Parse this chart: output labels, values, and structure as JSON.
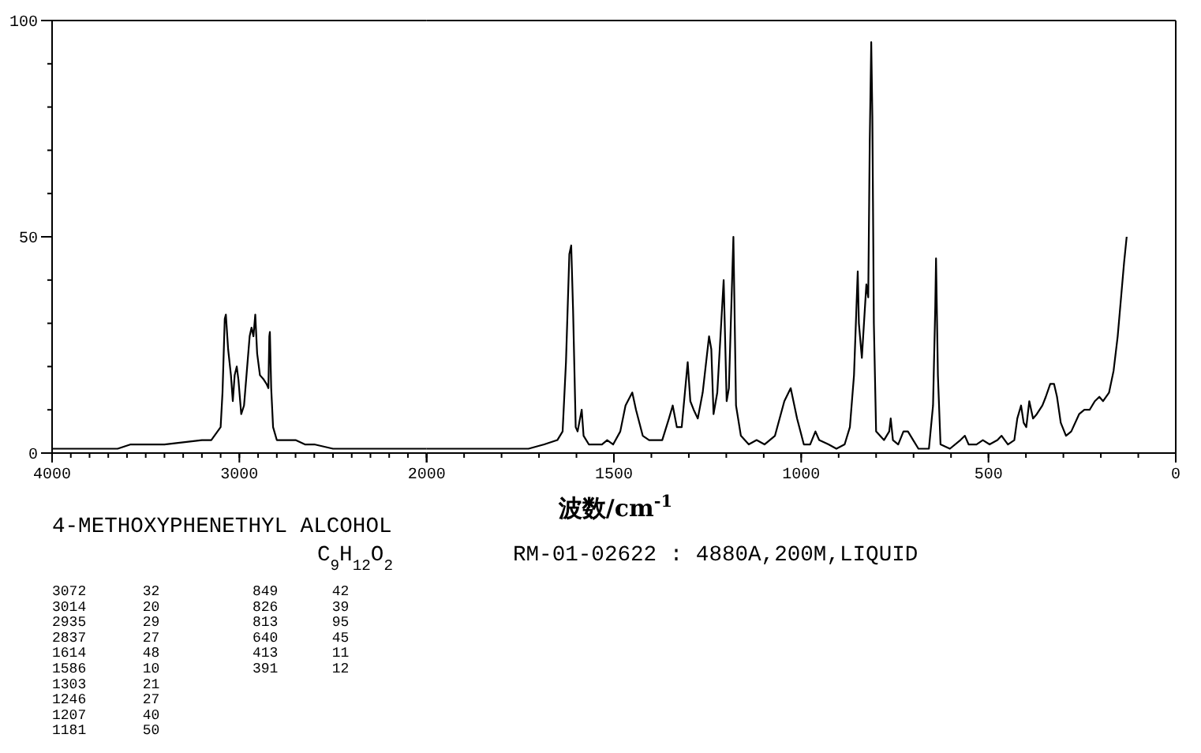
{
  "chart_data": [
    {
      "type": "line",
      "color": "#000000",
      "xlim": [
        4000,
        2000
      ],
      "ylim": [
        0,
        100
      ],
      "xticks": [
        4000,
        3000,
        2000
      ],
      "yticks": [
        0,
        50,
        100
      ],
      "x": [
        4000,
        3650,
        3580,
        3400,
        3200,
        3150,
        3100,
        3090,
        3078,
        3072,
        3060,
        3045,
        3035,
        3025,
        3014,
        3005,
        2990,
        2975,
        2960,
        2945,
        2935,
        2925,
        2915,
        2905,
        2890,
        2870,
        2855,
        2845,
        2840,
        2837,
        2830,
        2820,
        2800,
        2750,
        2700,
        2650,
        2600,
        2500,
        2300,
        2000
      ],
      "values": [
        1,
        1,
        2,
        2,
        3,
        3,
        6,
        14,
        31,
        32,
        24,
        18,
        12,
        18,
        20,
        17,
        9,
        11,
        19,
        27,
        29,
        27,
        32,
        23,
        18,
        17,
        16,
        15,
        27,
        28,
        15,
        6,
        3,
        3,
        3,
        2,
        2,
        1,
        1,
        1
      ],
      "annotations": [
        "4-METHOXYPHENETHYL ALCOHOL",
        "C$_{9}$H$_{12}$O$_{2}$",
        "RM-01-02622 : 4880A,200M,LIQUID",
        "3072 32",
        "3014 20",
        "2935 29",
        "2837 27",
        "1614 48",
        "1586 10",
        "1303 21",
        "1246 27",
        "1207 40",
        "1181 50",
        "849 42",
        "826 39",
        "813 95",
        "640 45",
        "413 11",
        "391 12"
      ]
    },
    {
      "type": "line",
      "color": "#000000",
      "xlabel": "波数/cm$^{-1}$",
      "xlim": [
        2000,
        0
      ],
      "ylim": [
        0,
        100
      ],
      "xticks": [
        {
          "value": 2000,
          "label": null
        },
        1500,
        1000,
        500,
        0
      ],
      "tick_labels": "x",
      "x": [
        2000,
        1728,
        1686,
        1651,
        1637,
        1628,
        1619,
        1614,
        1609,
        1602,
        1597,
        1586,
        1581,
        1567,
        1532,
        1518,
        1502,
        1483,
        1469,
        1451,
        1441,
        1423,
        1406,
        1371,
        1353,
        1343,
        1332,
        1319,
        1303,
        1296,
        1287,
        1276,
        1263,
        1246,
        1240,
        1234,
        1224,
        1207,
        1199,
        1193,
        1181,
        1174,
        1161,
        1140,
        1119,
        1098,
        1070,
        1045,
        1028,
        1011,
        993,
        976,
        962,
        952,
        927,
        906,
        884,
        870,
        859,
        849,
        846,
        838,
        831,
        826,
        821,
        817,
        813,
        810,
        806,
        800,
        779,
        765,
        761,
        755,
        741,
        727,
        715,
        701,
        687,
        659,
        648,
        642,
        640,
        635,
        628,
        603,
        575,
        563,
        553,
        532,
        515,
        497,
        476,
        465,
        448,
        431,
        423,
        413,
        406,
        399,
        391,
        381,
        371,
        356,
        347,
        335,
        325,
        317,
        307,
        293,
        279,
        258,
        244,
        230,
        216,
        204,
        194,
        178,
        166,
        155,
        145,
        138,
        131
      ],
      "values": [
        1,
        1,
        2,
        3,
        5,
        21,
        46,
        48,
        33,
        6,
        5,
        10,
        4,
        2,
        2,
        3,
        2,
        5,
        11,
        14,
        10,
        4,
        3,
        3,
        8,
        11,
        6,
        6,
        21,
        12,
        10,
        8,
        14,
        27,
        24,
        9,
        14,
        40,
        12,
        15,
        50,
        11,
        4,
        2,
        3,
        2,
        4,
        12,
        15,
        8,
        2,
        2,
        5,
        3,
        2,
        1,
        2,
        6,
        18,
        42,
        30,
        22,
        32,
        39,
        36,
        72,
        95,
        78,
        30,
        5,
        3,
        5,
        8,
        3,
        2,
        5,
        5,
        3,
        1,
        1,
        11,
        34,
        45,
        18,
        2,
        1,
        3,
        4,
        2,
        2,
        3,
        2,
        3,
        4,
        2,
        3,
        8,
        11,
        7,
        6,
        12,
        8,
        9,
        11,
        13,
        16,
        16,
        13,
        7,
        4,
        5,
        9,
        10,
        10,
        12,
        13,
        12,
        14,
        19,
        27,
        37,
        44,
        50
      ]
    }
  ]
}
